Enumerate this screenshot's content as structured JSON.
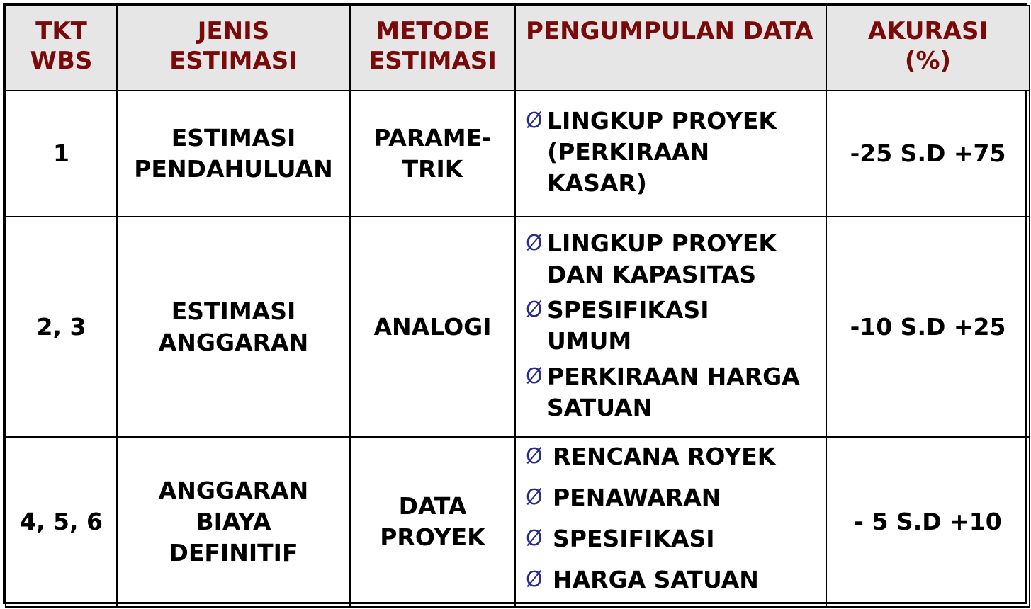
{
  "table": {
    "headers": [
      {
        "lines": [
          "TKT",
          "WBS"
        ]
      },
      {
        "lines": [
          "JENIS",
          "ESTIMASI"
        ]
      },
      {
        "lines": [
          "METODE",
          "ESTIMASI"
        ]
      },
      {
        "lines": [
          "PENGUMPULAN DATA"
        ]
      },
      {
        "lines": [
          "AKURASI",
          "(%)"
        ]
      }
    ],
    "bullet_symbol": "Ø",
    "rows": [
      {
        "tkt": "1",
        "jenis": [
          "ESTIMASI",
          "PENDAHULUAN"
        ],
        "metode": [
          "PARAME-",
          "TRIK"
        ],
        "data": [
          [
            "LINGKUP PROYEK",
            "(PERKIRAAN",
            "KASAR)"
          ]
        ],
        "akurasi": "-25 S.D +75"
      },
      {
        "tkt": "2, 3",
        "jenis": [
          "ESTIMASI",
          "ANGGARAN"
        ],
        "metode": [
          "ANALOGI"
        ],
        "data": [
          [
            "LINGKUP PROYEK",
            "DAN KAPASITAS"
          ],
          [
            "SPESIFIKASI",
            "UMUM"
          ],
          [
            "PERKIRAAN HARGA",
            "SATUAN"
          ]
        ],
        "akurasi": "-10 S.D +25"
      },
      {
        "tkt": "4, 5, 6",
        "jenis": [
          "ANGGARAN",
          "BIAYA",
          "DEFINITIF"
        ],
        "metode": [
          "DATA",
          "PROYEK"
        ],
        "data": [
          [
            "RENCANA ROYEK"
          ],
          [
            "PENAWARAN"
          ],
          [
            "SPESIFIKASI"
          ],
          [
            "HARGA SATUAN"
          ]
        ],
        "akurasi": "- 5 S.D +10"
      }
    ]
  }
}
